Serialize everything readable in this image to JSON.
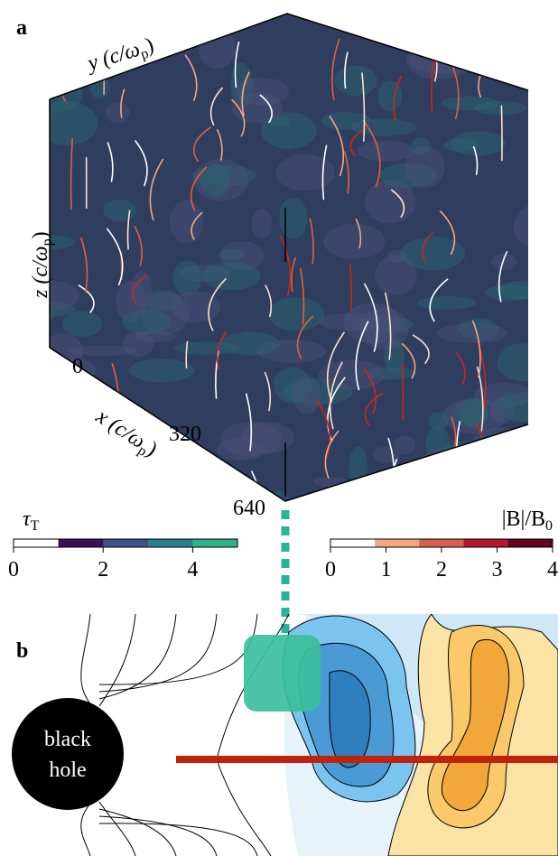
{
  "panel_a": {
    "label": "a",
    "axis_y": [
      "y",
      " (c/ω",
      "p",
      ")"
    ],
    "axis_z": [
      "z",
      " (c/ω",
      "p",
      ")"
    ],
    "axis_x": [
      "x",
      " (c/ω",
      "p",
      ")"
    ],
    "x_ticks": [
      "0",
      "320",
      "640"
    ]
  },
  "colorbars": [
    {
      "label": [
        "τ",
        "T"
      ],
      "lim": [
        0,
        5
      ],
      "ticks": [
        0,
        2,
        4
      ],
      "colors": [
        "#ffffff",
        "#3b0f58",
        "#3b528b",
        "#2c7f8e",
        "#2eb28a"
      ]
    },
    {
      "label": [
        "|B|/B",
        "0"
      ],
      "lim": [
        0,
        4
      ],
      "ticks": [
        0,
        1,
        2,
        3,
        4
      ],
      "colors": [
        "#ffffff",
        "#f4a582",
        "#d6604d",
        "#b2182b",
        "#67001f"
      ]
    }
  ],
  "panel_b": {
    "label": "b",
    "black_hole": [
      "black",
      "hole"
    ]
  }
}
